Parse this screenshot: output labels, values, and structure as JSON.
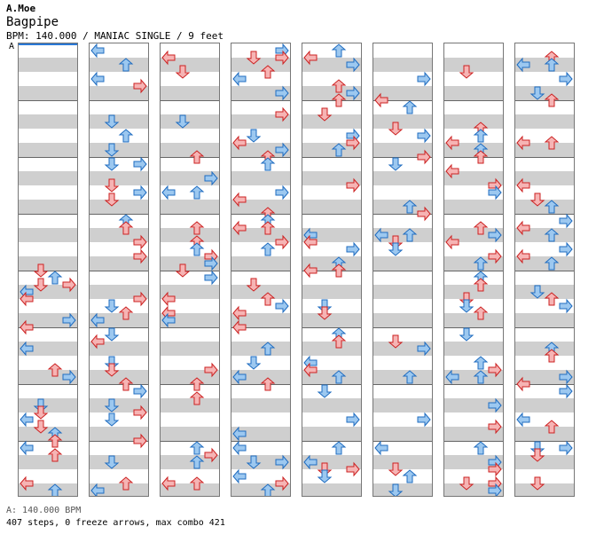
{
  "header": {
    "artist": "A.Moe",
    "title": "Bagpipe",
    "info": "BPM: 140.000 / MANIAC SINGLE / 9 feet",
    "bpm_marker": "A"
  },
  "footer": {
    "bpm_line": "A: 140.000 BPM",
    "stats": "407 steps, 0 freeze arrows, max combo 421"
  },
  "colors": {
    "quarter_fill": "#f6b4b4",
    "quarter_stroke": "#cc2222",
    "eighth_fill": "#9cc8f0",
    "eighth_stroke": "#1f6cc0",
    "sixteenth_fill": "#f7c0f0",
    "sixteenth_stroke": "#b24fb0",
    "stripe": "#cfcfcf"
  },
  "chart": {
    "columns": 8,
    "measures_per_column": 4,
    "lanes": [
      "left",
      "down",
      "up",
      "right"
    ],
    "total_steps": 407,
    "freeze_arrows": 0,
    "max_combo": 421
  }
}
